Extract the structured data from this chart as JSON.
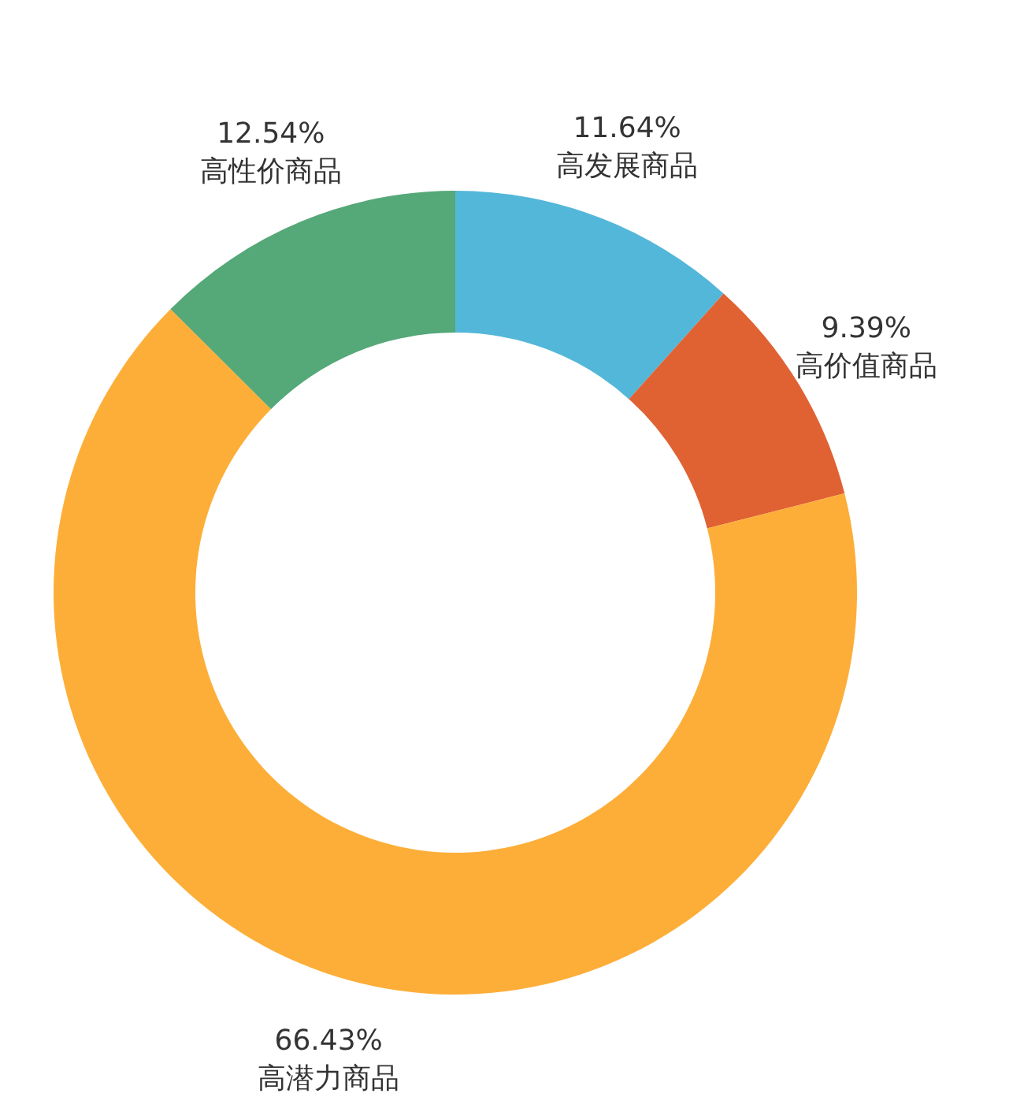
{
  "chart_data": {
    "type": "donut",
    "categories": [
      "高发展商品",
      "高价值商品",
      "高潜力商品",
      "高性价商品"
    ],
    "values": [
      11.64,
      9.39,
      66.43,
      12.54
    ],
    "colors": [
      "#53b7d9",
      "#e06233",
      "#fdae38",
      "#55a878"
    ],
    "value_labels": [
      "11.64%",
      "9.39%",
      "66.43%",
      "12.54%"
    ]
  }
}
